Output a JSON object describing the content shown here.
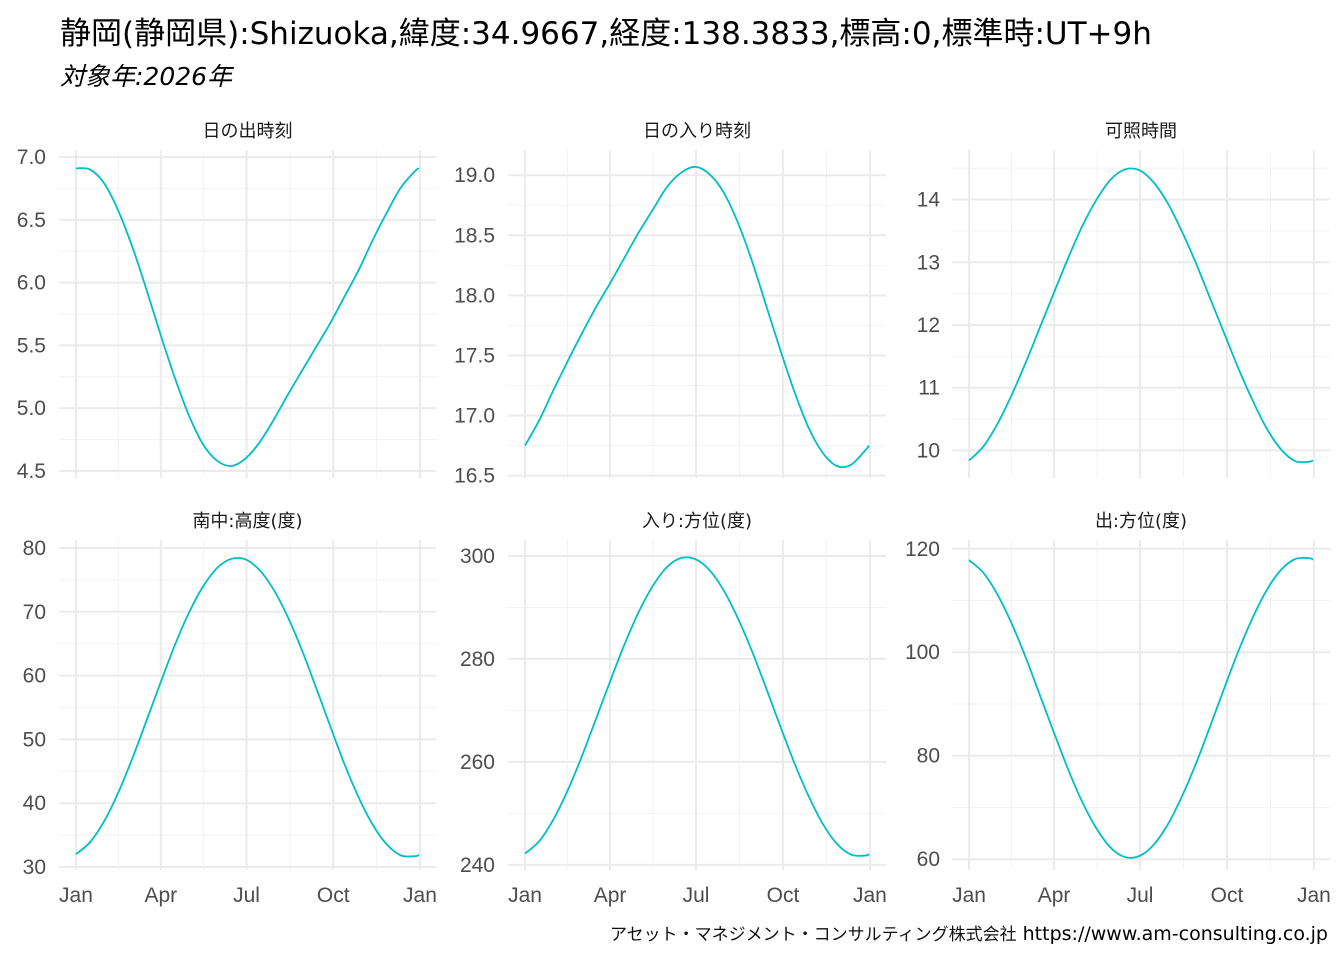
{
  "title": "静岡(静岡県):Shizuoka,緯度:34.9667,経度:138.3833,標高:0,標準時:UT+9h",
  "subtitle": "対象年:2026年",
  "caption": {
    "company": "アセット・マネジメント・コンサルティング株式会社",
    "url": "https://www.am-consulting.co.jp"
  },
  "colors": {
    "line": "#00BFC4",
    "grid_major": "#EBEBEB",
    "grid_minor": "#F3F3F3"
  },
  "chart_data": {
    "type": "line",
    "x_unit": "day_of_year_2026",
    "x_days": [
      1,
      16,
      31,
      46,
      61,
      76,
      91,
      106,
      121,
      136,
      151,
      166,
      181,
      196,
      211,
      226,
      241,
      256,
      271,
      286,
      301,
      316,
      331,
      346,
      361,
      365
    ],
    "x_ticks": [
      {
        "day": 1,
        "label": "Jan"
      },
      {
        "day": 91,
        "label": "Apr"
      },
      {
        "day": 182,
        "label": "Jul"
      },
      {
        "day": 274,
        "label": "Oct"
      },
      {
        "day": 366,
        "label": "Jan"
      }
    ],
    "xlim": [
      -17,
      383
    ],
    "panels": [
      {
        "title": "日の出時刻",
        "ylim": [
          4.444,
          7.056
        ],
        "yticks": [
          4.5,
          5.0,
          5.5,
          6.0,
          6.5,
          7.0
        ],
        "ytick_labels": [
          "4.5",
          "5.0",
          "5.5",
          "6.0",
          "6.5",
          "7.0"
        ],
        "minor_step": 0.25,
        "values": [
          6.91,
          6.9,
          6.79,
          6.57,
          6.28,
          5.94,
          5.58,
          5.24,
          4.94,
          4.71,
          4.58,
          4.54,
          4.6,
          4.73,
          4.91,
          5.11,
          5.3,
          5.49,
          5.68,
          5.89,
          6.1,
          6.34,
          6.56,
          6.76,
          6.89,
          6.91
        ]
      },
      {
        "title": "日の入り時刻",
        "ylim": [
          16.48,
          19.21
        ],
        "yticks": [
          16.5,
          17.0,
          17.5,
          18.0,
          18.5,
          19.0
        ],
        "ytick_labels": [
          "16.5",
          "17.0",
          "17.5",
          "18.0",
          "18.5",
          "19.0"
        ],
        "minor_step": 0.25,
        "values": [
          16.75,
          16.96,
          17.21,
          17.45,
          17.68,
          17.9,
          18.1,
          18.31,
          18.52,
          18.71,
          18.9,
          19.02,
          19.07,
          19.01,
          18.86,
          18.61,
          18.29,
          17.92,
          17.55,
          17.2,
          16.9,
          16.69,
          16.58,
          16.59,
          16.71,
          16.75
        ]
      },
      {
        "title": "可照時間",
        "ylim": [
          9.56,
          14.79
        ],
        "yticks": [
          10,
          11,
          12,
          13,
          14
        ],
        "ytick_labels": [
          "10",
          "11",
          "12",
          "13",
          "14"
        ],
        "minor_step": 0.5,
        "values": [
          9.84,
          10.06,
          10.42,
          10.88,
          11.4,
          11.96,
          12.52,
          13.07,
          13.58,
          14.0,
          14.32,
          14.48,
          14.47,
          14.28,
          13.95,
          13.5,
          12.99,
          12.43,
          11.87,
          11.31,
          10.8,
          10.35,
          10.02,
          9.83,
          9.82,
          9.84
        ]
      },
      {
        "title": "南中:高度(度)",
        "ylim": [
          29.53,
          81.25
        ],
        "yticks": [
          30,
          40,
          50,
          60,
          70,
          80
        ],
        "ytick_labels": [
          "30",
          "40",
          "50",
          "60",
          "70",
          "80"
        ],
        "minor_step": 5,
        "values": [
          32.0,
          33.9,
          37.2,
          41.7,
          47.1,
          53.0,
          59.0,
          64.8,
          69.9,
          74.0,
          76.9,
          78.3,
          78.2,
          76.5,
          73.4,
          69.1,
          63.9,
          58.0,
          52.0,
          46.1,
          40.9,
          36.6,
          33.5,
          31.8,
          31.7,
          31.9
        ]
      },
      {
        "title": "入り:方位(度)",
        "ylim": [
          239.0,
          303.1
        ],
        "yticks": [
          240,
          260,
          280,
          300
        ],
        "ytick_labels": [
          "240",
          "260",
          "280",
          "300"
        ],
        "minor_step": 10,
        "values": [
          242.2,
          244.6,
          248.8,
          254.4,
          261.0,
          268.3,
          275.6,
          282.7,
          289.0,
          294.1,
          297.8,
          299.6,
          299.4,
          297.3,
          293.4,
          288.0,
          281.6,
          274.4,
          267.0,
          259.8,
          253.4,
          248.0,
          244.1,
          242.0,
          241.8,
          242.1
        ]
      },
      {
        "title": "出:方位(度)",
        "ylim": [
          57.9,
          121.7
        ],
        "yticks": [
          60,
          80,
          100,
          120
        ],
        "ytick_labels": [
          "60",
          "80",
          "100",
          "120"
        ],
        "minor_step": 10,
        "values": [
          117.8,
          115.4,
          111.2,
          105.6,
          99.0,
          91.7,
          84.4,
          77.3,
          71.0,
          65.9,
          62.2,
          60.4,
          60.6,
          62.7,
          66.6,
          72.0,
          78.4,
          85.6,
          93.0,
          100.2,
          106.6,
          112.0,
          115.9,
          118.0,
          118.2,
          117.9
        ]
      }
    ]
  }
}
